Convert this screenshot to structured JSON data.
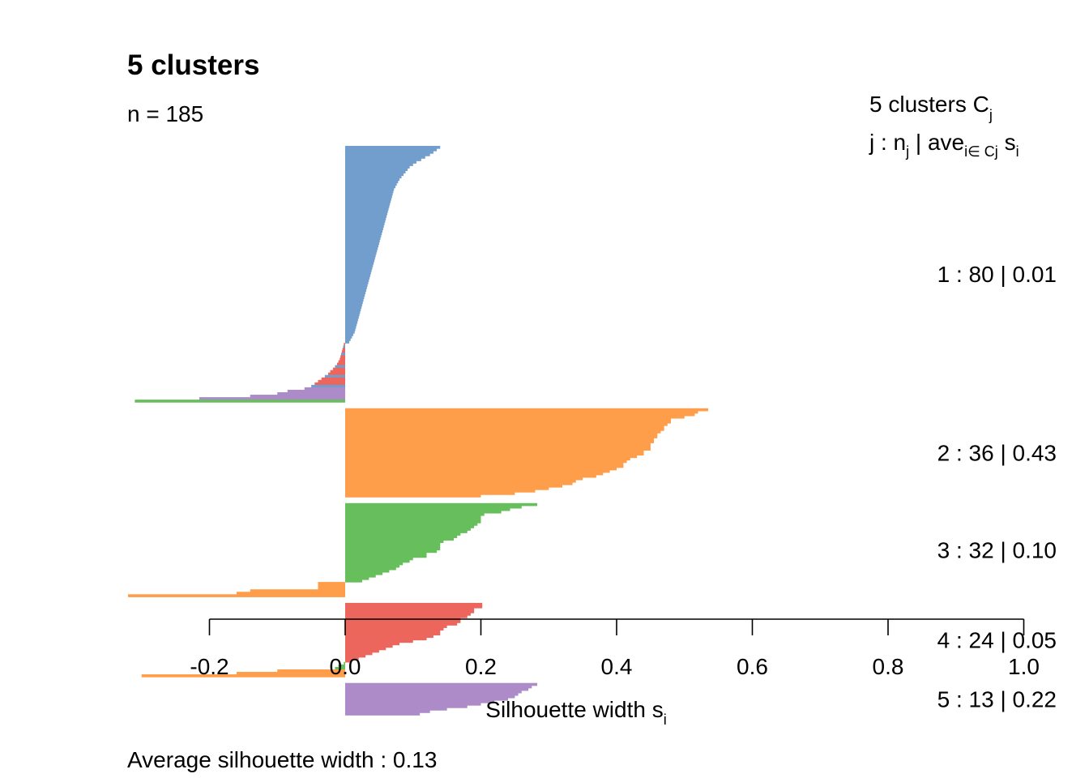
{
  "chart_data": {
    "type": "bar",
    "orientation": "horizontal",
    "title": "5 clusters",
    "subtitle": "n = 185",
    "xlabel": "Silhouette width s",
    "xlabel_sub": "i",
    "xlim": [
      -0.2,
      1.0
    ],
    "x_ticks": [
      -0.2,
      0.0,
      0.2,
      0.4,
      0.6,
      0.8,
      1.0
    ],
    "x_tick_labels": [
      "-0.2",
      "0.0",
      "0.2",
      "0.4",
      "0.6",
      "0.8",
      "1.0"
    ],
    "grid": false,
    "legend": {
      "position": "right",
      "header1": {
        "text": "5  clusters  C",
        "sub": "j"
      },
      "header2": {
        "a": "j :  n",
        "a_sub": "j",
        "b": " | ave",
        "b_sub": "i∈ Cj",
        "c": "  s",
        "c_sub": "i"
      }
    },
    "footer": {
      "label": "Average silhouette width :  0.13"
    },
    "average_width": 0.13,
    "clusters": [
      {
        "id": 1,
        "label": "1 :   80  |  0.01",
        "n": 80,
        "avg": 0.01,
        "color": "#729ECE",
        "widths": [
          0.14,
          0.135,
          0.13,
          0.125,
          0.118,
          0.112,
          0.105,
          0.1,
          0.095,
          0.092,
          0.089,
          0.086,
          0.083,
          0.08,
          0.078,
          0.076,
          0.074,
          0.072,
          0.071,
          0.07,
          0.069,
          0.068,
          0.067,
          0.066,
          0.065,
          0.064,
          0.063,
          0.062,
          0.061,
          0.06,
          0.059,
          0.058,
          0.057,
          0.056,
          0.055,
          0.054,
          0.053,
          0.052,
          0.051,
          0.05,
          0.049,
          0.048,
          0.047,
          0.046,
          0.045,
          0.044,
          0.043,
          0.042,
          0.041,
          0.04,
          0.039,
          0.038,
          0.037,
          0.036,
          0.035,
          0.034,
          0.033,
          0.032,
          0.031,
          0.03,
          0.029,
          0.028,
          0.027,
          0.026,
          0.025,
          0.024,
          0.023,
          0.022,
          0.021,
          0.02,
          0.019,
          0.018,
          0.017,
          0.016,
          0.015,
          0.014,
          0.012,
          0.01,
          0.008,
          0.006
        ],
        "neighbor_colors": [],
        "neg_tail": [
          {
            "w": -0.002,
            "c": "#ED665D"
          },
          {
            "w": -0.003,
            "c": "#729ECE"
          },
          {
            "w": -0.004,
            "c": "#ED665D"
          },
          {
            "w": -0.005,
            "c": "#ED665D"
          },
          {
            "w": -0.006,
            "c": "#729ECE"
          },
          {
            "w": -0.007,
            "c": "#ED665D"
          },
          {
            "w": -0.008,
            "c": "#ED665D"
          },
          {
            "w": -0.01,
            "c": "#ED665D"
          },
          {
            "w": -0.012,
            "c": "#ED665D"
          },
          {
            "w": -0.015,
            "c": "#729ECE"
          },
          {
            "w": -0.018,
            "c": "#ED665D"
          },
          {
            "w": -0.022,
            "c": "#ED665D"
          },
          {
            "w": -0.025,
            "c": "#ED665D"
          },
          {
            "w": -0.03,
            "c": "#729ECE"
          },
          {
            "w": -0.035,
            "c": "#ED665D"
          },
          {
            "w": -0.04,
            "c": "#ED665D"
          },
          {
            "w": -0.045,
            "c": "#ED665D"
          },
          {
            "w": -0.05,
            "c": "#729ECE"
          },
          {
            "w": -0.06,
            "c": "#AD8BC9"
          },
          {
            "w": -0.085,
            "c": "#AD8BC9"
          },
          {
            "w": -0.1,
            "c": "#AD8BC9"
          },
          {
            "w": -0.14,
            "c": "#AD8BC9"
          },
          {
            "w": -0.215,
            "c": "#AD8BC9"
          },
          {
            "w": -0.31,
            "c": "#67BF5C"
          }
        ]
      },
      {
        "id": 2,
        "label": "2 :   36  |  0.43",
        "n": 36,
        "avg": 0.43,
        "color": "#FF9E4A",
        "widths": [
          0.535,
          0.52,
          0.515,
          0.5,
          0.48,
          0.48,
          0.475,
          0.47,
          0.47,
          0.465,
          0.46,
          0.46,
          0.455,
          0.455,
          0.45,
          0.45,
          0.45,
          0.44,
          0.44,
          0.43,
          0.42,
          0.415,
          0.41,
          0.41,
          0.4,
          0.39,
          0.38,
          0.37,
          0.35,
          0.34,
          0.335,
          0.32,
          0.3,
          0.28,
          0.25,
          0.2
        ]
      },
      {
        "id": 3,
        "label": "3 :   32  |  0.10",
        "n": 32,
        "avg": 0.1,
        "color": "#67BF5C",
        "widths": [
          0.283,
          0.26,
          0.243,
          0.23,
          0.205,
          0.2,
          0.2,
          0.2,
          0.195,
          0.19,
          0.185,
          0.18,
          0.17,
          0.165,
          0.16,
          0.145,
          0.14,
          0.14,
          0.14,
          0.135,
          0.12,
          0.12,
          0.1,
          0.095,
          0.085,
          0.08,
          0.075,
          0.065,
          0.055,
          0.045,
          0.035,
          0.025
        ]
      },
      {
        "id": 4,
        "label": "4 :   24  |  0.05",
        "n": 24,
        "avg": 0.05,
        "color": "#ED665D",
        "widths": [
          0.202,
          0.202,
          0.19,
          0.19,
          0.185,
          0.18,
          0.17,
          0.17,
          0.165,
          0.15,
          0.145,
          0.14,
          0.14,
          0.13,
          0.12,
          0.1,
          0.08,
          0.07,
          0.06,
          0.05,
          0.04,
          0.03,
          0.02,
          0.01
        ]
      },
      {
        "id": 5,
        "label": "5 :   13  |  0.22",
        "n": 13,
        "avg": 0.22,
        "color": "#AD8BC9",
        "widths": [
          0.283,
          0.275,
          0.27,
          0.26,
          0.255,
          0.25,
          0.24,
          0.22,
          0.2,
          0.18,
          0.15,
          0.125,
          0.11
        ]
      }
    ],
    "negative_rows": [
      {
        "after_cluster": 3,
        "rows": [
          {
            "w": -0.04,
            "c": "#FF9E4A"
          },
          {
            "w": -0.04,
            "c": "#FF9E4A"
          },
          {
            "w": -0.04,
            "c": "#FF9E4A"
          },
          {
            "w": -0.14,
            "c": "#FF9E4A"
          },
          {
            "w": -0.16,
            "c": "#FF9E4A"
          },
          {
            "w": -0.32,
            "c": "#FF9E4A"
          }
        ]
      },
      {
        "after_cluster": 4,
        "rows": [
          {
            "w": -0.002,
            "c": "#67BF5C"
          },
          {
            "w": -0.01,
            "c": "#67BF5C"
          },
          {
            "w": -0.015,
            "c": "#67BF5C"
          },
          {
            "w": -0.1,
            "c": "#FF9E4A"
          },
          {
            "w": -0.16,
            "c": "#FF9E4A"
          },
          {
            "w": -0.3,
            "c": "#FF9E4A"
          }
        ]
      }
    ]
  }
}
